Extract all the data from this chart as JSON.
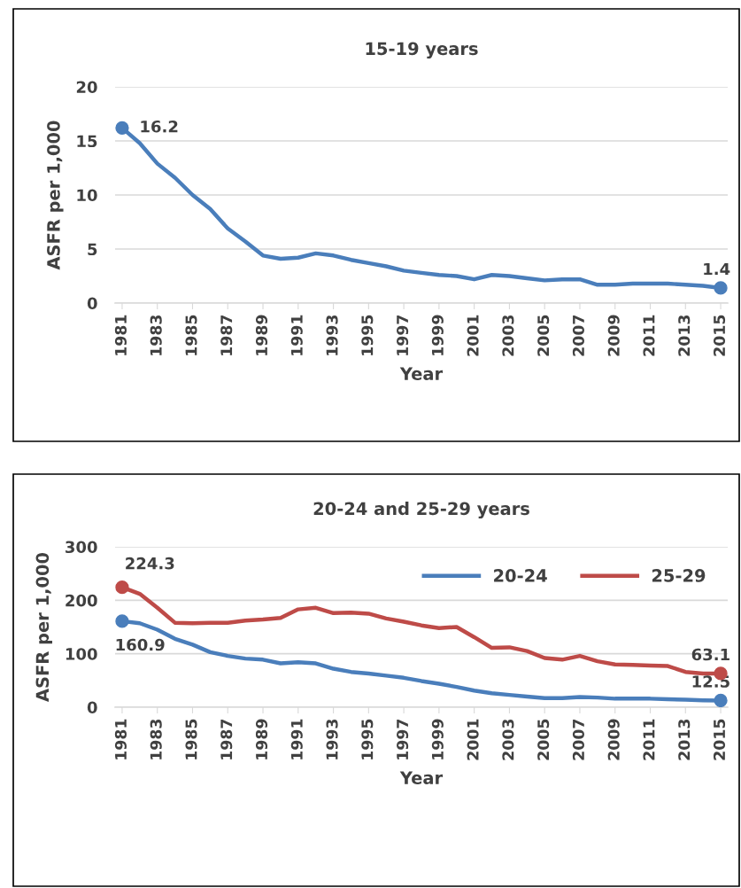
{
  "chart_data": [
    {
      "type": "line",
      "title": "15-19 years",
      "xlabel": "Year",
      "ylabel": "ASFR per 1,000",
      "x": [
        1981,
        1982,
        1983,
        1984,
        1985,
        1986,
        1987,
        1988,
        1989,
        1990,
        1991,
        1992,
        1993,
        1994,
        1995,
        1996,
        1997,
        1998,
        1999,
        2000,
        2001,
        2002,
        2003,
        2004,
        2005,
        2006,
        2007,
        2008,
        2009,
        2010,
        2011,
        2012,
        2013,
        2014,
        2015
      ],
      "series": [
        {
          "color": "#4a7ebb",
          "values": [
            16.2,
            14.8,
            12.9,
            11.6,
            10.0,
            8.7,
            6.9,
            5.7,
            4.4,
            4.1,
            4.2,
            4.6,
            4.4,
            4.0,
            3.7,
            3.4,
            3.0,
            2.8,
            2.6,
            2.5,
            2.2,
            2.6,
            2.5,
            2.3,
            2.1,
            2.2,
            2.2,
            1.7,
            1.7,
            1.8,
            1.8,
            1.8,
            1.7,
            1.6,
            1.4
          ],
          "value_labels": [
            "16.2",
            null,
            null,
            null,
            null,
            null,
            null,
            null,
            null,
            null,
            null,
            null,
            null,
            null,
            null,
            null,
            null,
            null,
            null,
            null,
            null,
            null,
            null,
            null,
            null,
            null,
            null,
            null,
            null,
            null,
            null,
            null,
            null,
            null,
            "1.4"
          ]
        }
      ],
      "xlim": [
        1980.6,
        2015.4
      ],
      "xticks": [
        1981,
        1983,
        1985,
        1987,
        1989,
        1991,
        1993,
        1995,
        1997,
        1999,
        2001,
        2003,
        2005,
        2007,
        2009,
        2011,
        2013,
        2015
      ],
      "ylim": [
        0,
        20
      ],
      "yticks": [
        0,
        5,
        10,
        15,
        20
      ],
      "grid": "y",
      "legend": false,
      "line_style": "solid"
    },
    {
      "type": "line",
      "title": "20-24 and 25-29 years",
      "xlabel": "Year",
      "ylabel": "ASFR per 1,000",
      "x": [
        1981,
        1982,
        1983,
        1984,
        1985,
        1986,
        1987,
        1988,
        1989,
        1990,
        1991,
        1992,
        1993,
        1994,
        1995,
        1996,
        1997,
        1998,
        1999,
        2000,
        2001,
        2002,
        2003,
        2004,
        2005,
        2006,
        2007,
        2008,
        2009,
        2010,
        2011,
        2012,
        2013,
        2014,
        2015
      ],
      "series": [
        {
          "name": "20-24",
          "color": "#4a7ebb",
          "values": [
            160.9,
            157,
            145,
            128,
            117,
            103,
            96,
            91,
            89,
            82,
            84,
            82,
            72,
            66,
            63,
            59,
            55,
            49,
            44,
            38,
            31,
            26,
            23,
            20,
            17,
            17,
            19,
            18,
            16,
            16,
            16,
            15,
            14,
            13,
            12.5
          ],
          "value_labels": [
            "160.9",
            null,
            null,
            null,
            null,
            null,
            null,
            null,
            null,
            null,
            null,
            null,
            null,
            null,
            null,
            null,
            null,
            null,
            null,
            null,
            null,
            null,
            null,
            null,
            null,
            null,
            null,
            null,
            null,
            null,
            null,
            null,
            null,
            null,
            "12.5"
          ]
        },
        {
          "name": "25-29",
          "color": "#be4b48",
          "values": [
            224.3,
            212,
            186,
            158,
            157,
            158,
            158,
            162,
            164,
            167,
            183,
            186,
            176,
            177,
            175,
            166,
            160,
            153,
            148,
            150,
            131,
            111,
            112,
            105,
            92,
            89,
            96,
            86,
            80,
            79,
            78,
            77,
            66,
            63,
            63.1
          ],
          "value_labels": [
            "224.3",
            null,
            null,
            null,
            null,
            null,
            null,
            null,
            null,
            null,
            null,
            null,
            null,
            null,
            null,
            null,
            null,
            null,
            null,
            null,
            null,
            null,
            null,
            null,
            null,
            null,
            null,
            null,
            null,
            null,
            null,
            null,
            null,
            null,
            "63.1"
          ]
        }
      ],
      "xlim": [
        1980.6,
        2015.4
      ],
      "xticks": [
        1981,
        1983,
        1985,
        1987,
        1989,
        1991,
        1993,
        1995,
        1997,
        1999,
        2001,
        2003,
        2005,
        2007,
        2009,
        2011,
        2013,
        2015
      ],
      "ylim": [
        0,
        300
      ],
      "yticks": [
        0,
        100,
        200,
        300
      ],
      "grid": "y",
      "legend": "top right",
      "line_style": "solid"
    }
  ]
}
